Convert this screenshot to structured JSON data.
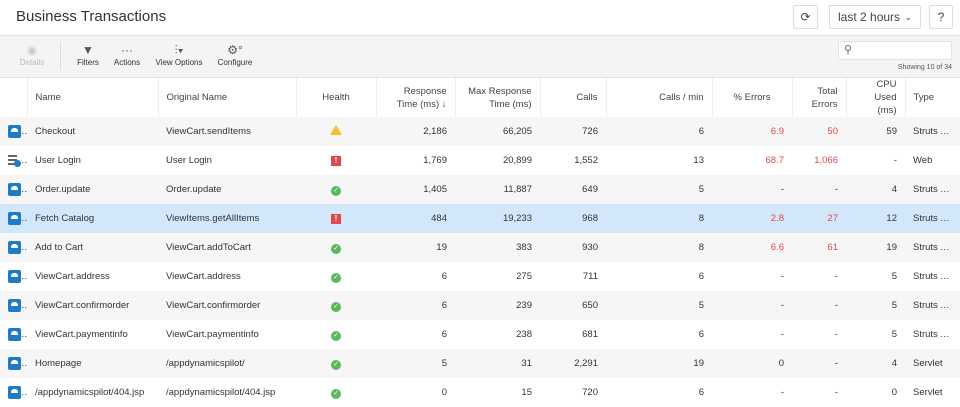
{
  "header": {
    "title": "Business Transactions",
    "time_range": "last 2 hours",
    "help": "?"
  },
  "toolbar": {
    "details": "Details",
    "filters": "Filters",
    "actions": "Actions",
    "view_options": "View Options",
    "configure": "Configure",
    "search_placeholder": "",
    "showing": "Showing 10 of 34"
  },
  "columns": {
    "name": "Name",
    "original": "Original Name",
    "health": "Health",
    "resp": "Response Time (ms) ↓",
    "max": "Max Response Time (ms)",
    "calls": "Calls",
    "cpm": "Calls / min",
    "perr": "% Errors",
    "terr": "Total Errors",
    "cpu": "CPU Used (ms)",
    "type": "Type"
  },
  "rows": [
    {
      "icon": "bt",
      "name": "Checkout",
      "original": "ViewCart.sendItems",
      "health": "warning",
      "resp": "2,186",
      "max": "66,205",
      "calls": "726",
      "cpm": "6",
      "perr": "6.9",
      "terr": "50",
      "cpu": "59",
      "type": "Struts Action",
      "red": true
    },
    {
      "icon": "web",
      "name": "User Login",
      "original": "User Login",
      "health": "critical",
      "resp": "1,769",
      "max": "20,899",
      "calls": "1,552",
      "cpm": "13",
      "perr": "68.7",
      "terr": "1,066",
      "cpu": "-",
      "type": "Web",
      "red": true
    },
    {
      "icon": "bt",
      "name": "Order.update",
      "original": "Order.update",
      "health": "normal",
      "resp": "1,405",
      "max": "11,887",
      "calls": "649",
      "cpm": "5",
      "perr": "-",
      "terr": "-",
      "cpu": "4",
      "type": "Struts Action"
    },
    {
      "icon": "bt",
      "name": "Fetch Catalog",
      "original": "ViewItems.getAllItems",
      "health": "critical",
      "resp": "484",
      "max": "19,233",
      "calls": "968",
      "cpm": "8",
      "perr": "2.8",
      "terr": "27",
      "cpu": "12",
      "type": "Struts Action",
      "red": true,
      "selected": true
    },
    {
      "icon": "bt",
      "name": "Add to Cart",
      "original": "ViewCart.addToCart",
      "health": "normal",
      "resp": "19",
      "max": "383",
      "calls": "930",
      "cpm": "8",
      "perr": "6.6",
      "terr": "61",
      "cpu": "19",
      "type": "Struts Action",
      "red": true
    },
    {
      "icon": "bt",
      "name": "ViewCart.address",
      "original": "ViewCart.address",
      "health": "normal",
      "resp": "6",
      "max": "275",
      "calls": "711",
      "cpm": "6",
      "perr": "-",
      "terr": "-",
      "cpu": "5",
      "type": "Struts Action"
    },
    {
      "icon": "bt",
      "name": "ViewCart.confirmorder",
      "original": "ViewCart.confirmorder",
      "health": "normal",
      "resp": "6",
      "max": "239",
      "calls": "650",
      "cpm": "5",
      "perr": "-",
      "terr": "-",
      "cpu": "5",
      "type": "Struts Action"
    },
    {
      "icon": "bt",
      "name": "ViewCart.paymentinfo",
      "original": "ViewCart.paymentinfo",
      "health": "normal",
      "resp": "6",
      "max": "238",
      "calls": "681",
      "cpm": "6",
      "perr": "-",
      "terr": "-",
      "cpu": "5",
      "type": "Struts Action"
    },
    {
      "icon": "bt",
      "name": "Homepage",
      "original": "/appdynamicspilot/",
      "health": "normal",
      "resp": "5",
      "max": "31",
      "calls": "2,291",
      "cpm": "19",
      "perr": "0",
      "terr": "-",
      "cpu": "4",
      "type": "Servlet"
    },
    {
      "icon": "bt",
      "name": "/appdynamicspilot/404.jsp",
      "original": "/appdynamicspilot/404.jsp",
      "health": "normal",
      "resp": "0",
      "max": "15",
      "calls": "720",
      "cpm": "6",
      "perr": "-",
      "terr": "-",
      "cpu": "0",
      "type": "Servlet"
    }
  ]
}
